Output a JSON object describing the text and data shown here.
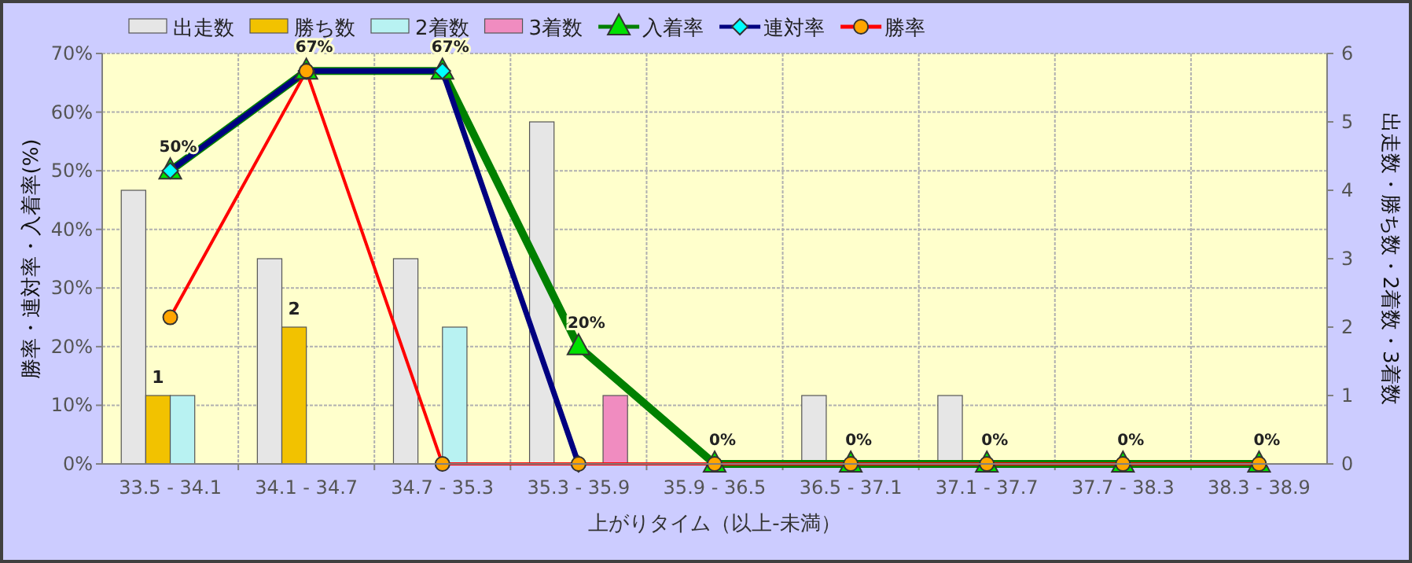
{
  "chart_data": {
    "type": "bar",
    "xlabel": "上がりタイム（以上-未満）",
    "ylabel": "勝率・連対率・入着率(%)",
    "y2label": "出走数・勝ち数・2着数・3着数",
    "categories": [
      "33.5 - 34.1",
      "34.1 - 34.7",
      "34.7 - 35.3",
      "35.3 - 35.9",
      "35.9 - 36.5",
      "36.5 - 37.1",
      "37.1 - 37.7",
      "37.7 - 38.3",
      "38.3 - 38.9"
    ],
    "series": [
      {
        "name": "出走数",
        "type": "bar",
        "axis": "y2",
        "color": "#e6e6e6",
        "values": [
          4,
          3,
          3,
          5,
          0,
          1,
          1,
          0,
          0
        ]
      },
      {
        "name": "勝ち数",
        "type": "bar",
        "axis": "y2",
        "color": "#f2c200",
        "values": [
          1,
          2,
          0,
          0,
          0,
          0,
          0,
          0,
          0
        ],
        "value_labels": [
          "1",
          "2",
          null,
          null,
          null,
          null,
          null,
          null,
          null
        ]
      },
      {
        "name": "2着数",
        "type": "bar",
        "axis": "y2",
        "color": "#b8f2f2",
        "values": [
          1,
          0,
          2,
          0,
          0,
          0,
          0,
          0,
          0
        ]
      },
      {
        "name": "3着数",
        "type": "bar",
        "axis": "y2",
        "color": "#f08cc0",
        "values": [
          0,
          0,
          0,
          1,
          0,
          0,
          0,
          0,
          0
        ]
      },
      {
        "name": "入着率",
        "type": "line",
        "color": "#008000",
        "marker": "triangle",
        "values": [
          50,
          67,
          67,
          20,
          0,
          0,
          0,
          0,
          0
        ],
        "value_labels": [
          "50%",
          "67%",
          "67%",
          "20%",
          "0%",
          "0%",
          "0%",
          "0%",
          "0%"
        ]
      },
      {
        "name": "連対率",
        "type": "line",
        "color": "#000080",
        "marker": "diamond",
        "values": [
          50,
          67,
          67,
          0,
          null,
          null,
          null,
          null,
          null
        ]
      },
      {
        "name": "勝率",
        "type": "line",
        "color": "#ff0000",
        "marker": "circle",
        "values": [
          25,
          67,
          0,
          0,
          0,
          0,
          0,
          0,
          0
        ]
      }
    ],
    "ylim": [
      0,
      70
    ],
    "yticks": [
      {
        "value": 0,
        "label": "0%"
      },
      {
        "value": 10,
        "label": "10%"
      },
      {
        "value": 20,
        "label": "20%"
      },
      {
        "value": 30,
        "label": "30%"
      },
      {
        "value": 40,
        "label": "40%"
      },
      {
        "value": 50,
        "label": "50%"
      },
      {
        "value": 60,
        "label": "60%"
      },
      {
        "value": 70,
        "label": "70%"
      }
    ],
    "y2lim": [
      0,
      6
    ],
    "y2ticks": [
      0,
      1,
      2,
      3,
      4,
      5,
      6
    ],
    "grid": true,
    "legend": "top"
  }
}
